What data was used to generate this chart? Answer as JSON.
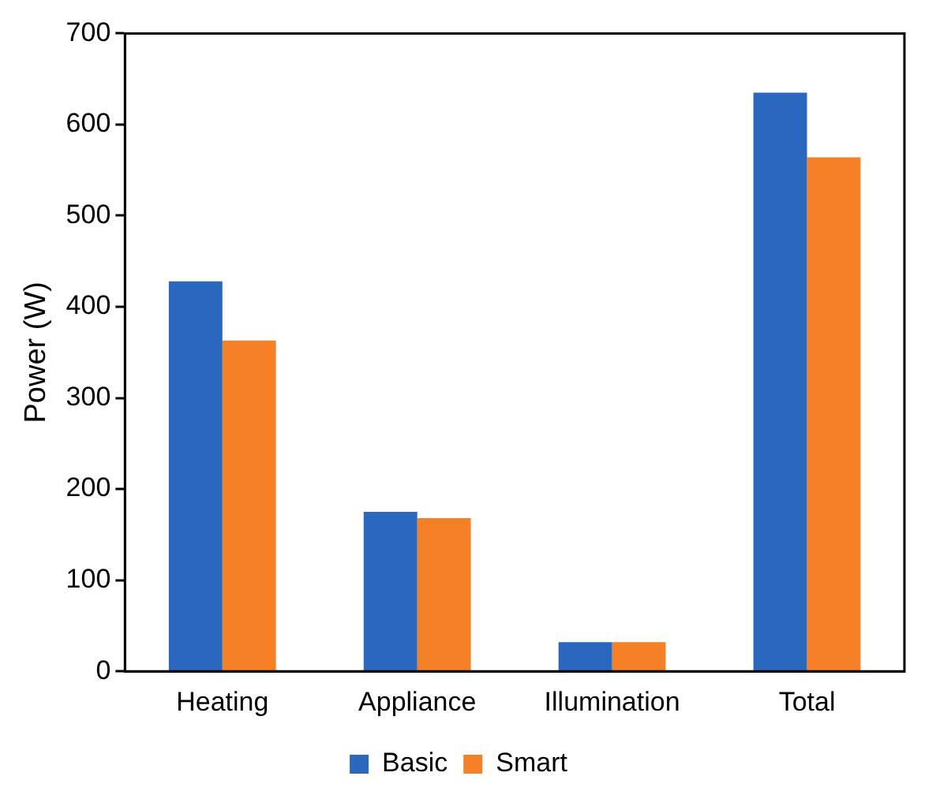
{
  "chart_data": {
    "type": "bar",
    "ylabel": "Power (W)",
    "categories": [
      "Heating",
      "Appliance",
      "Illumination",
      "Total"
    ],
    "series": [
      {
        "name": "Basic",
        "color": "#2a67bf",
        "values": [
          428,
          175,
          32,
          635
        ]
      },
      {
        "name": "Smart",
        "color": "#f58025",
        "values": [
          363,
          168,
          32,
          564
        ]
      }
    ],
    "ylim": [
      0,
      700
    ],
    "yticks": [
      0,
      100,
      200,
      300,
      400,
      500,
      600,
      700
    ],
    "grid": false,
    "legend": "bottom"
  }
}
